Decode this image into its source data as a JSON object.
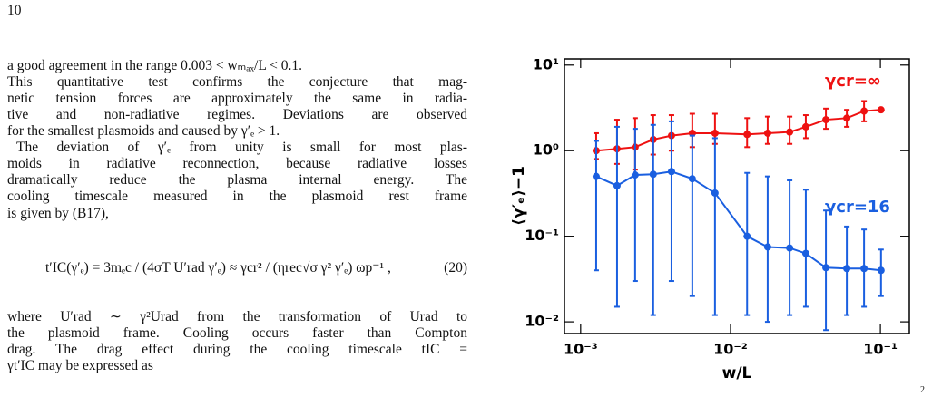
{
  "page_number": "10",
  "text": {
    "lines": [
      "a good agreement in the range 0.003 < wₘₐₓ/L < 0.1.",
      "This quantitative test confirms the conjecture that mag-",
      "netic tension forces are approximately the same in radia-",
      "tive and non-radiative regimes. Deviations are observed",
      "for the smallest plasmoids and caused by γ′ₑ > 1.",
      "The deviation of γ′ₑ from unity is small for most plas-",
      "moids in radiative reconnection, because radiative losses",
      "dramatically reduce the plasma internal energy.  The",
      "cooling timescale measured in the plasmoid rest frame",
      "is given by (B17),",
      "where U′rad ∼ γ²Urad from the transformation of Urad to",
      "the plasmoid frame. Cooling occurs faster than Compton",
      "drag. The drag effect during the cooling timescale tIC =",
      "γt′IC may be expressed as"
    ],
    "equation": "t′IC(γ′ₑ) = 3mₑc / (4σT U′rad γ′ₑ) ≈ γcr² / (ηrec√σ γ² γ′ₑ) ωp⁻¹ ,",
    "equation_number": "(20)"
  },
  "corner_mark": "2",
  "chart_data": {
    "type": "line",
    "xlabel": "w/L",
    "ylabel": "⟨γ′ₑ⟩−1",
    "log_x": true,
    "log_y": true,
    "xlim": [
      0.00078,
      0.156
    ],
    "ylim": [
      0.0073,
      11.8
    ],
    "xticks": [
      {
        "value": 0.001,
        "label": "10⁻³"
      },
      {
        "value": 0.01,
        "label": "10⁻²"
      },
      {
        "value": 0.1,
        "label": "10⁻¹"
      }
    ],
    "yticks": [
      {
        "value": 0.01,
        "label": "10⁻²"
      },
      {
        "value": 0.1,
        "label": "10⁻¹"
      },
      {
        "value": 1,
        "label": "10⁰"
      },
      {
        "value": 10,
        "label": "10¹"
      }
    ],
    "x": [
      0.00127,
      0.00175,
      0.00231,
      0.00305,
      0.00404,
      0.00556,
      0.00788,
      0.0129,
      0.0177,
      0.0248,
      0.0318,
      0.0433,
      0.0597,
      0.0778,
      0.101
    ],
    "series": [
      {
        "name": "γcr=∞",
        "color": "#ee1111",
        "values": [
          1.0,
          1.05,
          1.1,
          1.35,
          1.5,
          1.6,
          1.6,
          1.55,
          1.6,
          1.65,
          1.9,
          2.3,
          2.4,
          2.9,
          3.0
        ],
        "err_low": [
          0.8,
          0.7,
          0.6,
          0.9,
          1.0,
          1.1,
          1.2,
          1.1,
          1.2,
          1.2,
          1.4,
          1.8,
          1.9,
          2.2,
          3.0
        ],
        "err_high": [
          1.6,
          2.3,
          2.4,
          2.6,
          2.6,
          2.7,
          2.7,
          2.4,
          2.5,
          2.5,
          2.6,
          3.1,
          3.0,
          3.8,
          3.0
        ]
      },
      {
        "name": "γcr=16",
        "color": "#1a5fe0",
        "values": [
          0.5,
          0.39,
          0.52,
          0.53,
          0.57,
          0.47,
          0.32,
          0.1,
          0.075,
          0.073,
          0.063,
          0.043,
          0.042,
          0.042,
          0.04
        ],
        "err_low": [
          0.04,
          0.015,
          0.03,
          0.012,
          0.03,
          0.02,
          0.012,
          0.012,
          0.01,
          0.012,
          0.015,
          0.008,
          0.012,
          0.015,
          0.02
        ],
        "err_high": [
          1.3,
          1.9,
          1.8,
          2.0,
          2.2,
          1.5,
          1.4,
          0.55,
          0.5,
          0.45,
          0.35,
          0.2,
          0.13,
          0.12,
          0.07
        ]
      }
    ]
  }
}
